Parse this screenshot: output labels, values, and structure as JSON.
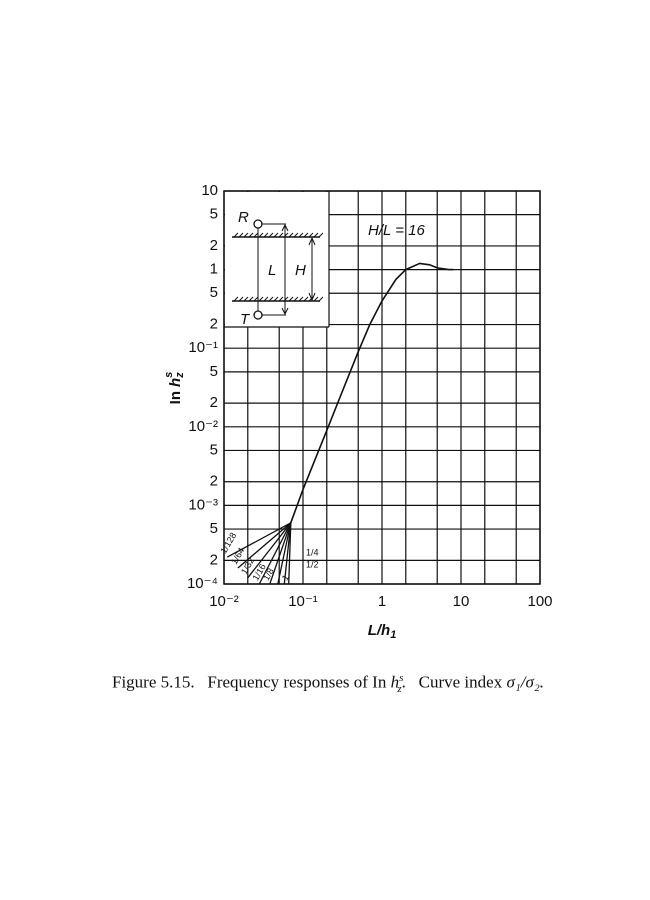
{
  "chart_data": {
    "type": "line",
    "log_x": true,
    "log_y": true,
    "grid": true,
    "color": "#111111",
    "xlim": [
      0.01,
      100
    ],
    "ylim": [
      0.0001,
      10
    ],
    "xticks": [
      {
        "value": 0.01,
        "label": "10⁻²"
      },
      {
        "value": 0.1,
        "label": "10⁻¹"
      },
      1,
      10,
      100
    ],
    "yticks": [
      10,
      {
        "value": 5,
        "label": "5"
      },
      {
        "value": 2,
        "label": "2"
      },
      1,
      {
        "value": 0.5,
        "label": "5"
      },
      {
        "value": 0.2,
        "label": "2"
      },
      {
        "value": 0.1,
        "label": "10⁻¹"
      },
      {
        "value": 0.05,
        "label": "5"
      },
      {
        "value": 0.02,
        "label": "2"
      },
      {
        "value": 0.01,
        "label": "10⁻²"
      },
      {
        "value": 0.005,
        "label": "5"
      },
      {
        "value": 0.002,
        "label": "2"
      },
      {
        "value": 0.001,
        "label": "10⁻³"
      },
      {
        "value": 0.0005,
        "label": "5"
      },
      {
        "value": 0.0002,
        "label": "2"
      },
      {
        "value": 0.0001,
        "label": "10⁻⁴"
      }
    ],
    "x_label": {
      "text": "L/h",
      "sub": "1"
    },
    "y_label": {
      "text": "In",
      "symbol": "h",
      "sup": "s",
      "sub": "z"
    },
    "annotation": "H/L = 16",
    "inset": {
      "r": "R",
      "t": "T",
      "l": "L",
      "h": "H"
    },
    "curve": {
      "x": [
        0.07,
        0.1,
        0.2,
        0.3,
        0.5,
        0.7,
        1,
        1.5,
        2,
        3,
        4,
        5,
        7,
        8
      ],
      "values": [
        0.0006,
        0.0016,
        0.009,
        0.025,
        0.09,
        0.2,
        0.4,
        0.75,
        1.0,
        1.2,
        1.15,
        1.05,
        1.0,
        1.0
      ]
    },
    "series": [
      {
        "name": "1/128",
        "x": [
          0.07,
          0.011
        ],
        "values": [
          0.0006,
          0.00022
        ]
      },
      {
        "name": "1/64",
        "x": [
          0.07,
          0.015
        ],
        "values": [
          0.0006,
          0.00016
        ]
      },
      {
        "name": "1/32",
        "x": [
          0.07,
          0.02
        ],
        "values": [
          0.0006,
          0.00012
        ]
      },
      {
        "name": "1/16",
        "x": [
          0.07,
          0.028
        ],
        "values": [
          0.0006,
          0.0001
        ]
      },
      {
        "name": "1/8",
        "x": [
          0.07,
          0.038
        ],
        "values": [
          0.0006,
          0.0001
        ]
      },
      {
        "name": "1/4",
        "x": [
          0.07,
          0.048
        ],
        "values": [
          0.0006,
          0.0001
        ]
      },
      {
        "name": "1/2",
        "x": [
          0.07,
          0.058
        ],
        "values": [
          0.0006,
          0.0001
        ]
      },
      {
        "name": "1",
        "x": [
          0.07,
          0.066
        ],
        "values": [
          0.0006,
          0.0001
        ]
      }
    ]
  },
  "caption": {
    "label": "Figure 5.15.",
    "text": "Frequency responses of In",
    "symbol": "h",
    "sup": "s",
    "sub": "z",
    "end": ".",
    "text2": "Curve index",
    "formula": "σ₁/σ₂."
  }
}
